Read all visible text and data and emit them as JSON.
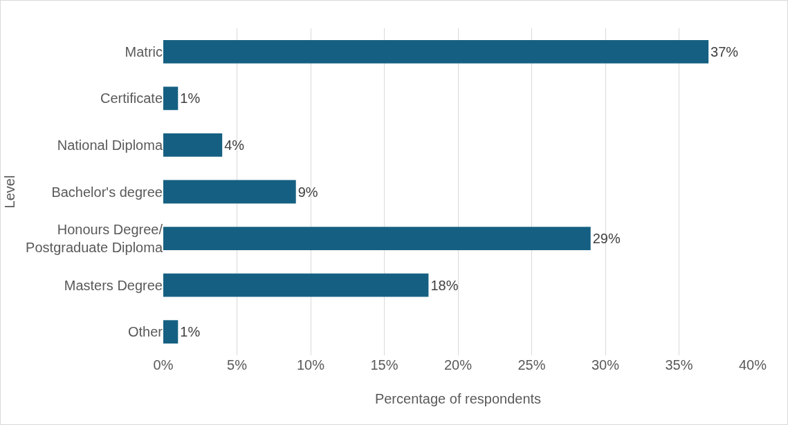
{
  "chart_data": {
    "type": "bar",
    "orientation": "horizontal",
    "xlabel": "Percentage of respondents",
    "ylabel": "Level",
    "categories": [
      "Matric",
      "Certificate",
      "National Diploma",
      "Bachelor's degree",
      "Honours Degree/\nPostgraduate Diploma",
      "Masters Degree",
      "Other"
    ],
    "values": [
      37,
      1,
      4,
      9,
      29,
      18,
      1
    ],
    "value_labels": [
      "37%",
      "1%",
      "4%",
      "9%",
      "29%",
      "18%",
      "1%"
    ],
    "color": "#156082",
    "xlim": [
      0,
      40
    ],
    "xticks": [
      {
        "value": 0,
        "label": "0%"
      },
      {
        "value": 5,
        "label": "5%"
      },
      {
        "value": 10,
        "label": "10%"
      },
      {
        "value": 15,
        "label": "15%"
      },
      {
        "value": 20,
        "label": "20%"
      },
      {
        "value": 25,
        "label": "25%"
      },
      {
        "value": 30,
        "label": "30%"
      },
      {
        "value": 35,
        "label": "35%"
      },
      {
        "value": 40,
        "label": "40%"
      }
    ],
    "grid": "x",
    "legend": false
  }
}
